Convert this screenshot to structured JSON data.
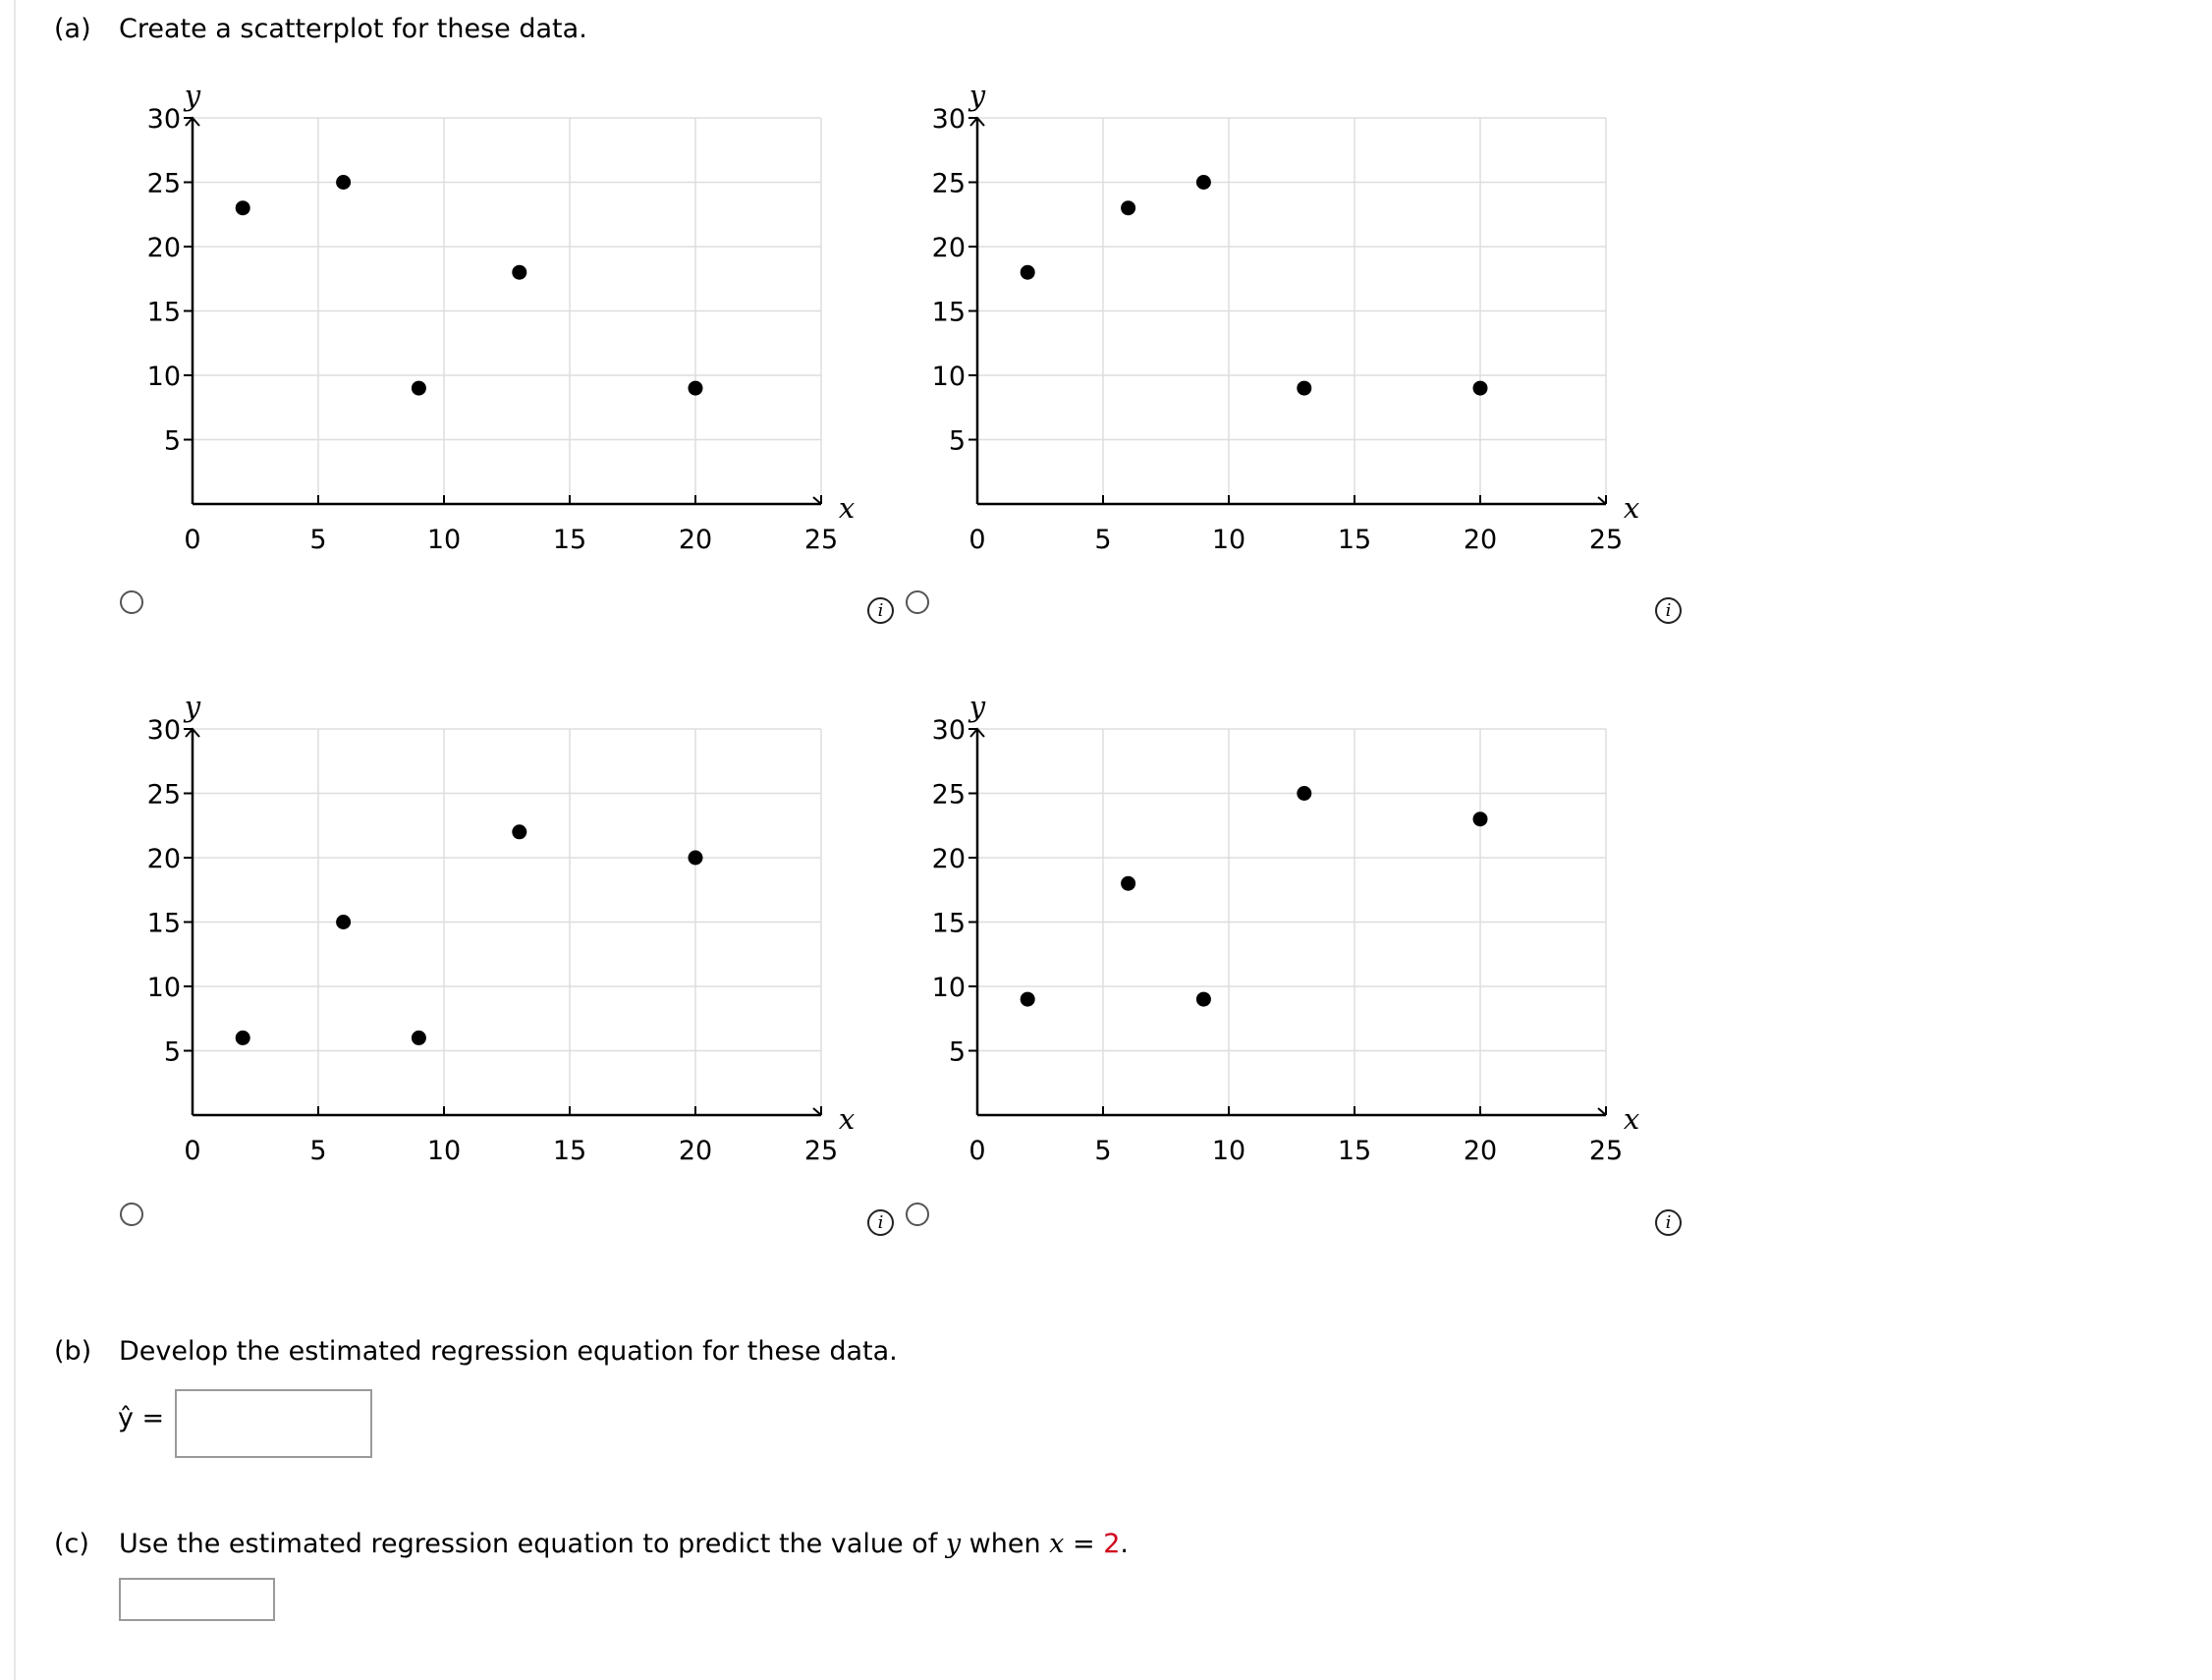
{
  "part_a": {
    "label": "(a)",
    "text": "Create a scatterplot for these data."
  },
  "part_b": {
    "label": "(b)",
    "text": "Develop the estimated regression equation for these data.",
    "yhat_label": "ŷ =",
    "answer_value": ""
  },
  "part_c": {
    "label": "(c)",
    "text_before": "Use the estimated regression equation to predict the value of ",
    "var_y": "y",
    "text_mid": " when ",
    "var_x": "x",
    "equals": " = ",
    "x_value": "2",
    "period": ".",
    "answer_value": ""
  },
  "info_icon_glyph": "i",
  "colors": {
    "accent_red": "#d0021b",
    "grid": "#dddddd",
    "point": "#000000"
  },
  "chart_data": [
    {
      "type": "scatter",
      "option": "A",
      "xlabel": "x",
      "ylabel": "y",
      "xlim": [
        0,
        25
      ],
      "ylim": [
        0,
        30
      ],
      "xticks": [
        0,
        5,
        10,
        15,
        20,
        25
      ],
      "yticks": [
        5,
        10,
        15,
        20,
        25,
        30
      ],
      "points": [
        [
          2,
          23
        ],
        [
          6,
          25
        ],
        [
          9,
          9
        ],
        [
          13,
          18
        ],
        [
          20,
          9
        ]
      ]
    },
    {
      "type": "scatter",
      "option": "B",
      "xlabel": "x",
      "ylabel": "y",
      "xlim": [
        0,
        25
      ],
      "ylim": [
        0,
        30
      ],
      "xticks": [
        0,
        5,
        10,
        15,
        20,
        25
      ],
      "yticks": [
        5,
        10,
        15,
        20,
        25,
        30
      ],
      "points": [
        [
          2,
          18
        ],
        [
          6,
          23
        ],
        [
          9,
          25
        ],
        [
          13,
          9
        ],
        [
          20,
          9
        ]
      ]
    },
    {
      "type": "scatter",
      "option": "C",
      "xlabel": "x",
      "ylabel": "y",
      "xlim": [
        0,
        25
      ],
      "ylim": [
        0,
        30
      ],
      "xticks": [
        0,
        5,
        10,
        15,
        20,
        25
      ],
      "yticks": [
        5,
        10,
        15,
        20,
        25,
        30
      ],
      "points": [
        [
          2,
          6
        ],
        [
          6,
          15
        ],
        [
          9,
          6
        ],
        [
          13,
          22
        ],
        [
          20,
          20
        ]
      ]
    },
    {
      "type": "scatter",
      "option": "D",
      "xlabel": "x",
      "ylabel": "y",
      "xlim": [
        0,
        25
      ],
      "ylim": [
        0,
        30
      ],
      "xticks": [
        0,
        5,
        10,
        15,
        20,
        25
      ],
      "yticks": [
        5,
        10,
        15,
        20,
        25,
        30
      ],
      "points": [
        [
          2,
          9
        ],
        [
          6,
          18
        ],
        [
          9,
          9
        ],
        [
          13,
          25
        ],
        [
          20,
          23
        ]
      ]
    }
  ]
}
